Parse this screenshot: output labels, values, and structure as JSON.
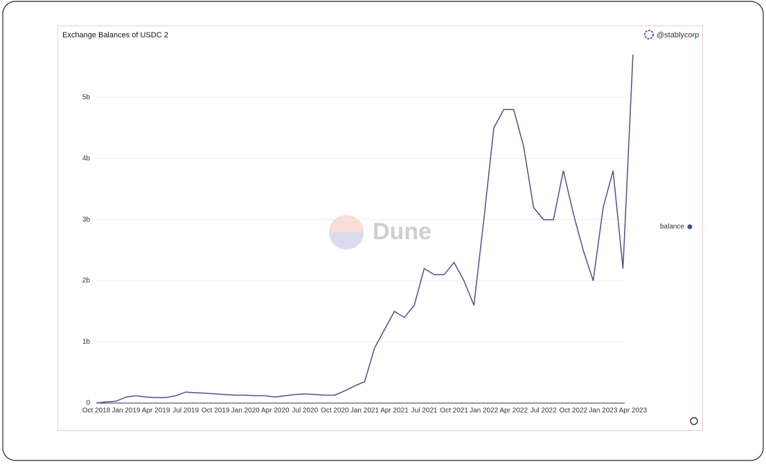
{
  "chart_data": {
    "type": "line",
    "title": "Exchange Balances of USDC 2",
    "author": "@stablycorp",
    "watermark": "Dune",
    "x": [
      "Oct 2018",
      "Nov 2018",
      "Dec 2018",
      "Jan 2019",
      "Feb 2019",
      "Mar 2019",
      "Apr 2019",
      "May 2019",
      "Jun 2019",
      "Jul 2019",
      "Aug 2019",
      "Sep 2019",
      "Oct 2019",
      "Nov 2019",
      "Dec 2019",
      "Jan 2020",
      "Feb 2020",
      "Mar 2020",
      "Apr 2020",
      "May 2020",
      "Jun 2020",
      "Jul 2020",
      "Aug 2020",
      "Sep 2020",
      "Oct 2020",
      "Nov 2020",
      "Dec 2020",
      "Jan 2021",
      "Feb 2021",
      "Mar 2021",
      "Apr 2021",
      "May 2021",
      "Jun 2021",
      "Jul 2021",
      "Aug 2021",
      "Sep 2021",
      "Oct 2021",
      "Nov 2021",
      "Dec 2021",
      "Jan 2022",
      "Feb 2022",
      "Mar 2022",
      "Apr 2022",
      "May 2022",
      "Jun 2022",
      "Jul 2022",
      "Aug 2022",
      "Sep 2022",
      "Oct 2022",
      "Nov 2022",
      "Dec 2022",
      "Jan 2023",
      "Feb 2023",
      "Mar 2023",
      "Apr 2023"
    ],
    "series": [
      {
        "name": "balance",
        "color": "#4f4d91",
        "values": [
          0,
          0.02,
          0.03,
          0.1,
          0.12,
          0.1,
          0.09,
          0.09,
          0.12,
          0.18,
          0.17,
          0.16,
          0.15,
          0.14,
          0.13,
          0.13,
          0.12,
          0.12,
          0.1,
          0.12,
          0.14,
          0.15,
          0.14,
          0.13,
          0.13,
          0.2,
          0.28,
          0.35,
          0.9,
          1.2,
          1.5,
          1.4,
          1.6,
          2.2,
          2.1,
          2.1,
          2.3,
          2.0,
          1.6,
          3.0,
          4.5,
          4.8,
          4.8,
          4.2,
          3.2,
          3.0,
          3.0,
          3.8,
          3.1,
          2.5,
          2.0,
          3.2,
          3.8,
          2.2,
          5.7
        ]
      }
    ],
    "ylim": [
      0,
      5.8
    ],
    "yticks": [
      0,
      {
        "value": 1,
        "label": "1b"
      },
      {
        "value": 2,
        "label": "2b"
      },
      {
        "value": 3,
        "label": "3b"
      },
      {
        "value": 4,
        "label": "4b"
      },
      {
        "value": 5,
        "label": "5b"
      }
    ],
    "xtick_step": 3,
    "grid": true,
    "legend": "right"
  }
}
